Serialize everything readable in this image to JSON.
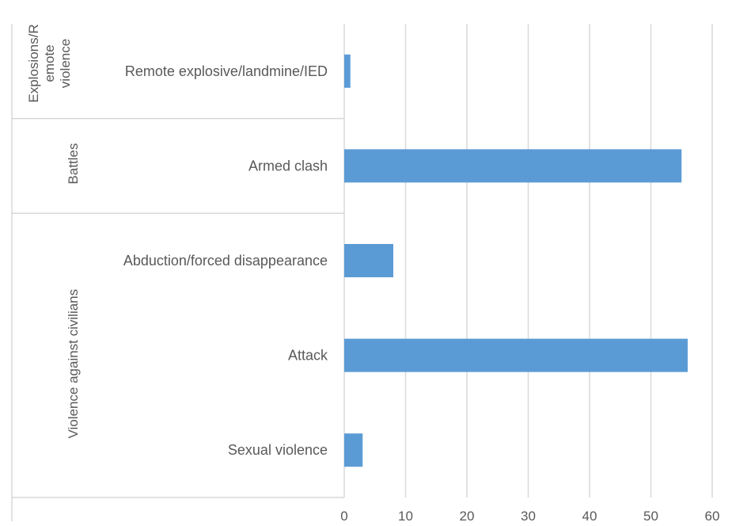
{
  "chart_data": {
    "type": "bar",
    "orientation": "horizontal",
    "title": "",
    "xlabel": "",
    "ylabel": "",
    "xlim": [
      0,
      60
    ],
    "ticks": [
      0,
      10,
      20,
      30,
      40,
      50,
      60
    ],
    "grid": true,
    "bar_color": "#5B9BD5",
    "groups": [
      {
        "label": "Explosions/Remote violence",
        "label_lines": [
          "Explosions/R",
          "emote",
          "violence"
        ],
        "count": 1
      },
      {
        "label": "Battles",
        "label_lines": [
          "Battles"
        ],
        "count": 1
      },
      {
        "label": "Violence against civilians",
        "label_lines": [
          "Violence against civilians"
        ],
        "count": 3
      }
    ],
    "categories": [
      "Remote explosive/landmine/IED",
      "Armed clash",
      "Abduction/forced disappearance",
      "Attack",
      "Sexual violence"
    ],
    "values": [
      1,
      55,
      8,
      56,
      3
    ]
  }
}
